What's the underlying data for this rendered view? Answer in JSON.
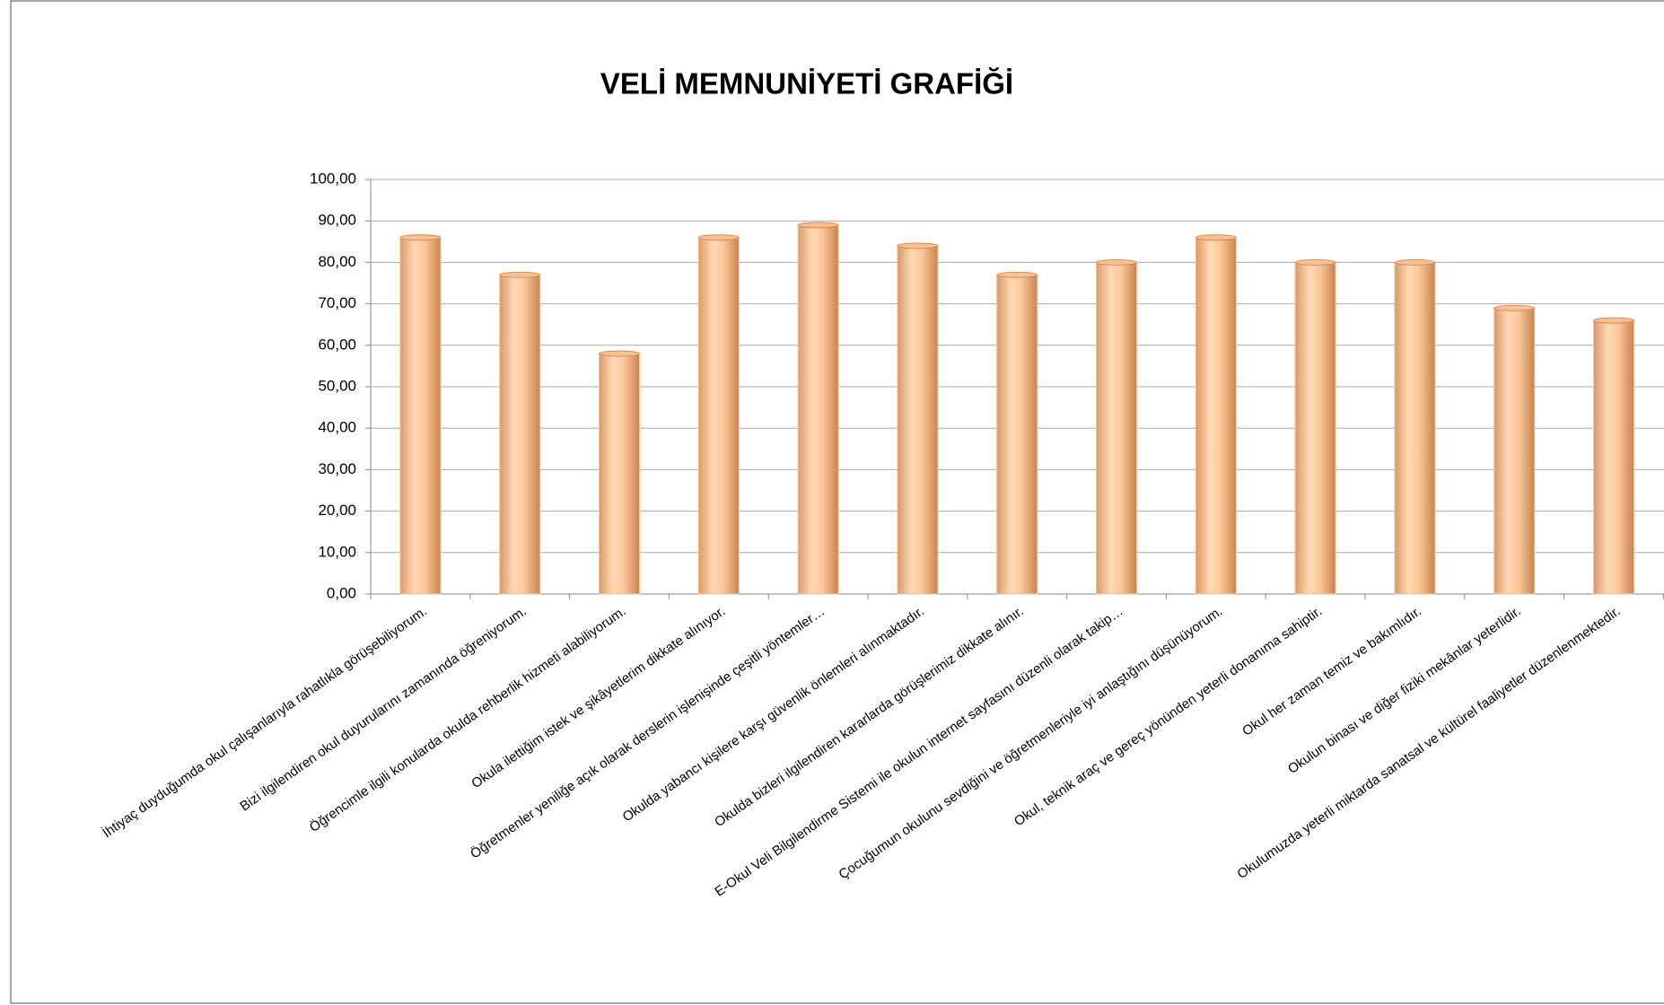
{
  "chart_data": {
    "type": "bar",
    "title": "VELİ MEMNUNİYETİ GRAFİĞİ",
    "categories": [
      "İhtiyaç duyduğumda okul çalışanlarıyla rahatlıkla görüşebiliyorum.",
      "Bizi ilgilendiren okul duyurularını zamanında öğreniyorum.",
      "Öğrencimle ilgili konularda okulda rehberlik hizmeti alabiliyorum.",
      "Okula ilettiğim istek ve şikâyetlerim dikkate alınıyor.",
      "Öğretmenler yeniliğe açık olarak derslerin işlenişinde çeşitli yöntemler…",
      "Okulda yabancı kişilere karşı güvenlik önlemleri alınmaktadır.",
      "Okulda bizleri ilgilendiren kararlarda görüşlerimiz dikkate alınır.",
      "E-Okul Veli Bilgilendirme Sistemi ile okulun internet sayfasını düzenli olarak takip…",
      "Çocuğumun okulunu sevdiğini ve öğretmenleriyle iyi anlaştığını düşünüyorum.",
      "Okul, teknik araç ve gereç yönünden yeterli donanıma sahiptir.",
      "Okul her zaman temiz ve bakımlıdır.",
      "Okulun binası ve diğer fiziki mekânlar yeterlidir.",
      "Okulumuzda yeterli miktarda sanatsal ve kültürel faaliyetler düzenlenmektedir."
    ],
    "values": [
      86,
      77,
      58,
      86,
      89,
      84,
      77,
      80,
      86,
      80,
      80,
      69,
      66
    ],
    "color": "#fac090",
    "ylim": [
      0,
      100
    ],
    "yticks": [
      {
        "value": 0,
        "label": "0,00"
      },
      {
        "value": 10,
        "label": "10,00"
      },
      {
        "value": 20,
        "label": "20,00"
      },
      {
        "value": 30,
        "label": "30,00"
      },
      {
        "value": 40,
        "label": "40,00"
      },
      {
        "value": 50,
        "label": "50,00"
      },
      {
        "value": 60,
        "label": "60,00"
      },
      {
        "value": 70,
        "label": "70,00"
      },
      {
        "value": 80,
        "label": "80,00"
      },
      {
        "value": 90,
        "label": "90,00"
      },
      {
        "value": 100,
        "label": "100,00"
      }
    ],
    "grid": true
  }
}
